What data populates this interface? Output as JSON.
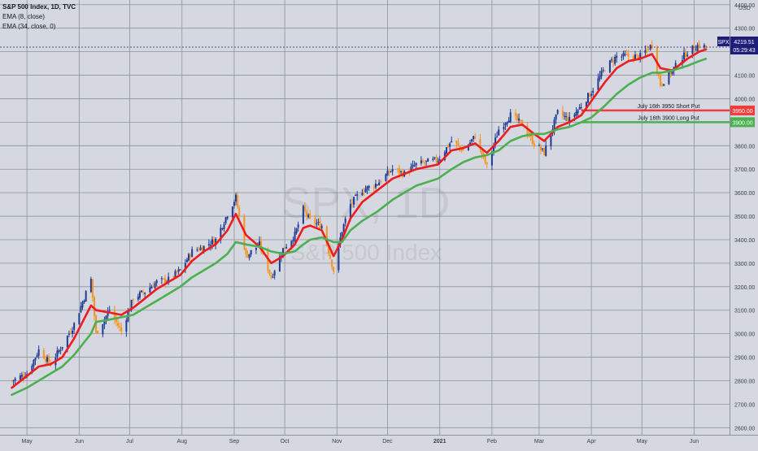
{
  "header": {
    "title": "S&P 500 Index, 1D, TVC",
    "indicator_1": "EMA (8, close)",
    "indicator_2": "EMA (34, close, 0)",
    "currency": "USD"
  },
  "watermark": {
    "symbol": "SPX, 1D",
    "name": "S&P 500 Index"
  },
  "price_tag": {
    "symbol": "SPX",
    "price": "4219.51",
    "countdown": "05:29:43",
    "color": "#1e1e7a"
  },
  "annotations": [
    {
      "label": "July 16th 3950 Short Put",
      "tag": "3950.00",
      "value": 3950,
      "color": "#f23c3c"
    },
    {
      "label": "July 16th 3900 Long Put",
      "tag": "3900.00",
      "value": 3900,
      "color": "#4caf50"
    }
  ],
  "colors": {
    "background": "#d5d8e0",
    "grid": "#8d929c",
    "up_candle": "#1f3a93",
    "down_candle": "#f7931e",
    "ema_fast": "#ee1c1c",
    "ema_slow": "#4caf50",
    "axis_text": "#3a3f4a"
  },
  "chart_data": {
    "type": "line",
    "title": "S&P 500 Index, 1D, TVC",
    "xlabel": "",
    "ylabel": "USD",
    "x_ticks": [
      "May",
      "Jun",
      "Jul",
      "Aug",
      "Sep",
      "Oct",
      "Nov",
      "Dec",
      "2021",
      "Feb",
      "Mar",
      "Apr",
      "May",
      "Jun"
    ],
    "y_ticks": [
      2600,
      2700,
      2800,
      2900,
      3000,
      3100,
      3200,
      3300,
      3400,
      3500,
      3600,
      3700,
      3800,
      3900,
      4000,
      4100,
      4200,
      4300,
      4400
    ],
    "ylim": [
      2570,
      4420
    ],
    "grid": true,
    "x": [
      "2020-04-22",
      "2020-05-01",
      "2020-05-08",
      "2020-05-15",
      "2020-05-22",
      "2020-05-29",
      "2020-06-08",
      "2020-06-11",
      "2020-06-19",
      "2020-06-26",
      "2020-07-03",
      "2020-07-10",
      "2020-07-17",
      "2020-07-24",
      "2020-07-31",
      "2020-08-07",
      "2020-08-14",
      "2020-08-21",
      "2020-08-28",
      "2020-09-02",
      "2020-09-08",
      "2020-09-16",
      "2020-09-23",
      "2020-09-30",
      "2020-10-07",
      "2020-10-12",
      "2020-10-16",
      "2020-10-23",
      "2020-10-30",
      "2020-11-04",
      "2020-11-09",
      "2020-11-16",
      "2020-11-25",
      "2020-12-04",
      "2020-12-11",
      "2020-12-18",
      "2020-12-31",
      "2021-01-08",
      "2021-01-15",
      "2021-01-22",
      "2021-01-29",
      "2021-02-05",
      "2021-02-12",
      "2021-02-19",
      "2021-02-26",
      "2021-03-04",
      "2021-03-12",
      "2021-03-19",
      "2021-03-26",
      "2021-04-01",
      "2021-04-09",
      "2021-04-16",
      "2021-04-23",
      "2021-04-30",
      "2021-05-07",
      "2021-05-12",
      "2021-05-19",
      "2021-05-28",
      "2021-06-04",
      "2021-06-08"
    ],
    "series": [
      {
        "name": "",
        "color": "#3a4a6b",
        "values": [
          2800,
          2830,
          2930,
          2870,
          2950,
          3040,
          3230,
          3000,
          3100,
          3010,
          3150,
          3180,
          3220,
          3230,
          3270,
          3350,
          3370,
          3400,
          3510,
          3580,
          3330,
          3380,
          3240,
          3360,
          3420,
          3530,
          3480,
          3460,
          3270,
          3440,
          3550,
          3610,
          3640,
          3700,
          3680,
          3720,
          3740,
          3820,
          3780,
          3840,
          3710,
          3870,
          3930,
          3890,
          3810,
          3770,
          3940,
          3910,
          3970,
          4030,
          4130,
          4180,
          4180,
          4180,
          4230,
          4060,
          4120,
          4200,
          4230,
          4219
        ]
      },
      {
        "name": "EMA (8, close)",
        "color": "#ee1c1c",
        "values": [
          2770,
          2820,
          2860,
          2870,
          2900,
          2980,
          3120,
          3100,
          3090,
          3080,
          3110,
          3150,
          3190,
          3220,
          3250,
          3310,
          3350,
          3380,
          3440,
          3510,
          3420,
          3370,
          3300,
          3330,
          3380,
          3450,
          3460,
          3440,
          3330,
          3400,
          3490,
          3560,
          3610,
          3660,
          3680,
          3700,
          3720,
          3780,
          3790,
          3810,
          3770,
          3820,
          3880,
          3890,
          3850,
          3820,
          3880,
          3900,
          3930,
          3990,
          4070,
          4130,
          4160,
          4170,
          4190,
          4130,
          4120,
          4170,
          4200,
          4210
        ]
      },
      {
        "name": "EMA (34, close, 0)",
        "color": "#4caf50",
        "values": [
          2740,
          2770,
          2800,
          2830,
          2860,
          2910,
          3000,
          3050,
          3060,
          3070,
          3080,
          3110,
          3140,
          3170,
          3200,
          3240,
          3270,
          3300,
          3340,
          3390,
          3380,
          3370,
          3350,
          3340,
          3350,
          3380,
          3400,
          3410,
          3390,
          3390,
          3440,
          3480,
          3520,
          3570,
          3600,
          3630,
          3660,
          3700,
          3730,
          3750,
          3760,
          3780,
          3820,
          3840,
          3850,
          3850,
          3870,
          3880,
          3900,
          3920,
          3970,
          4020,
          4060,
          4090,
          4110,
          4110,
          4120,
          4140,
          4160,
          4170
        ]
      }
    ],
    "reference_lines": [
      {
        "label": "July 16th 3950 Short Put",
        "value": 3950,
        "color": "#f23c3c"
      },
      {
        "label": "July 16th 3900 Long Put",
        "value": 3900,
        "color": "#4caf50"
      }
    ]
  }
}
